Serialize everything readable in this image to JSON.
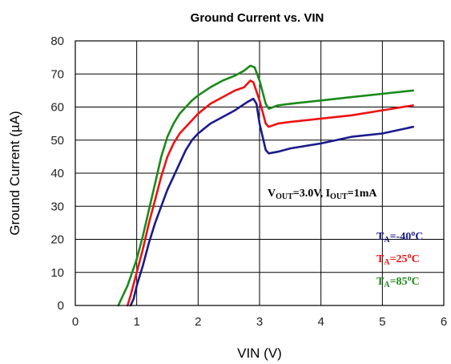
{
  "chart_data": {
    "type": "line",
    "title": "Ground Current vs. VIN",
    "xlabel": "VIN (V)",
    "ylabel": "Ground Current (µA)",
    "xlim": [
      0,
      6
    ],
    "ylim": [
      0,
      80
    ],
    "x_ticks": [
      0,
      1,
      2,
      3,
      4,
      5,
      6
    ],
    "y_ticks": [
      0,
      10,
      20,
      30,
      40,
      50,
      60,
      70,
      80
    ],
    "grid": true,
    "condition": {
      "v_main": "V",
      "v_sub": "OUT",
      "v_rest": "=3.0V, ",
      "i_main": "I",
      "i_sub": "OUT",
      "i_rest": "=1mA"
    },
    "series": [
      {
        "label_main": "T",
        "label_sub": "A",
        "label_value": "=-40",
        "label_deg": "o",
        "label_unit": "C",
        "color": "#1a1a8c",
        "points": [
          [
            0.9,
            0
          ],
          [
            0.95,
            2
          ],
          [
            1.0,
            6
          ],
          [
            1.1,
            12
          ],
          [
            1.2,
            19
          ],
          [
            1.3,
            25
          ],
          [
            1.4,
            30
          ],
          [
            1.5,
            35
          ],
          [
            1.6,
            39
          ],
          [
            1.7,
            43
          ],
          [
            1.8,
            47
          ],
          [
            1.9,
            50
          ],
          [
            2.0,
            52
          ],
          [
            2.2,
            55
          ],
          [
            2.4,
            57
          ],
          [
            2.6,
            59
          ],
          [
            2.8,
            61.5
          ],
          [
            2.9,
            62.5
          ],
          [
            2.95,
            61
          ],
          [
            3.0,
            55
          ],
          [
            3.1,
            47
          ],
          [
            3.15,
            46
          ],
          [
            3.3,
            46.5
          ],
          [
            3.5,
            47.5
          ],
          [
            4.0,
            49
          ],
          [
            4.5,
            51
          ],
          [
            5.0,
            52
          ],
          [
            5.5,
            54
          ]
        ]
      },
      {
        "label_main": "T",
        "label_sub": "A",
        "label_value": "=25",
        "label_deg": "o",
        "label_unit": "C",
        "color": "#ee1111",
        "points": [
          [
            0.85,
            0
          ],
          [
            0.9,
            3
          ],
          [
            1.0,
            10
          ],
          [
            1.1,
            17
          ],
          [
            1.2,
            25
          ],
          [
            1.3,
            32
          ],
          [
            1.4,
            39
          ],
          [
            1.5,
            45
          ],
          [
            1.6,
            49
          ],
          [
            1.7,
            52
          ],
          [
            1.8,
            54
          ],
          [
            1.9,
            56
          ],
          [
            2.0,
            58
          ],
          [
            2.2,
            61
          ],
          [
            2.4,
            63
          ],
          [
            2.6,
            65
          ],
          [
            2.75,
            66
          ],
          [
            2.85,
            68
          ],
          [
            2.9,
            67.5
          ],
          [
            3.0,
            62
          ],
          [
            3.1,
            55
          ],
          [
            3.15,
            54
          ],
          [
            3.3,
            55
          ],
          [
            3.5,
            55.5
          ],
          [
            4.0,
            56.5
          ],
          [
            4.5,
            57.5
          ],
          [
            5.0,
            59
          ],
          [
            5.5,
            60.5
          ]
        ]
      },
      {
        "label_main": "T",
        "label_sub": "A",
        "label_value": "=85",
        "label_deg": "o",
        "label_unit": "C",
        "color": "#1a8a1a",
        "points": [
          [
            0.7,
            0
          ],
          [
            0.75,
            2
          ],
          [
            0.85,
            6
          ],
          [
            1.0,
            14
          ],
          [
            1.1,
            21
          ],
          [
            1.2,
            29
          ],
          [
            1.3,
            37
          ],
          [
            1.4,
            45
          ],
          [
            1.5,
            51
          ],
          [
            1.6,
            55
          ],
          [
            1.7,
            58
          ],
          [
            1.8,
            60
          ],
          [
            1.9,
            62
          ],
          [
            2.0,
            63.5
          ],
          [
            2.2,
            66
          ],
          [
            2.4,
            68
          ],
          [
            2.6,
            69.5
          ],
          [
            2.75,
            71
          ],
          [
            2.85,
            72.5
          ],
          [
            2.92,
            72
          ],
          [
            3.0,
            68
          ],
          [
            3.1,
            61
          ],
          [
            3.15,
            59.5
          ],
          [
            3.3,
            60.5
          ],
          [
            3.5,
            61
          ],
          [
            4.0,
            62
          ],
          [
            4.5,
            63
          ],
          [
            5.0,
            64
          ],
          [
            5.5,
            65
          ]
        ]
      }
    ]
  }
}
